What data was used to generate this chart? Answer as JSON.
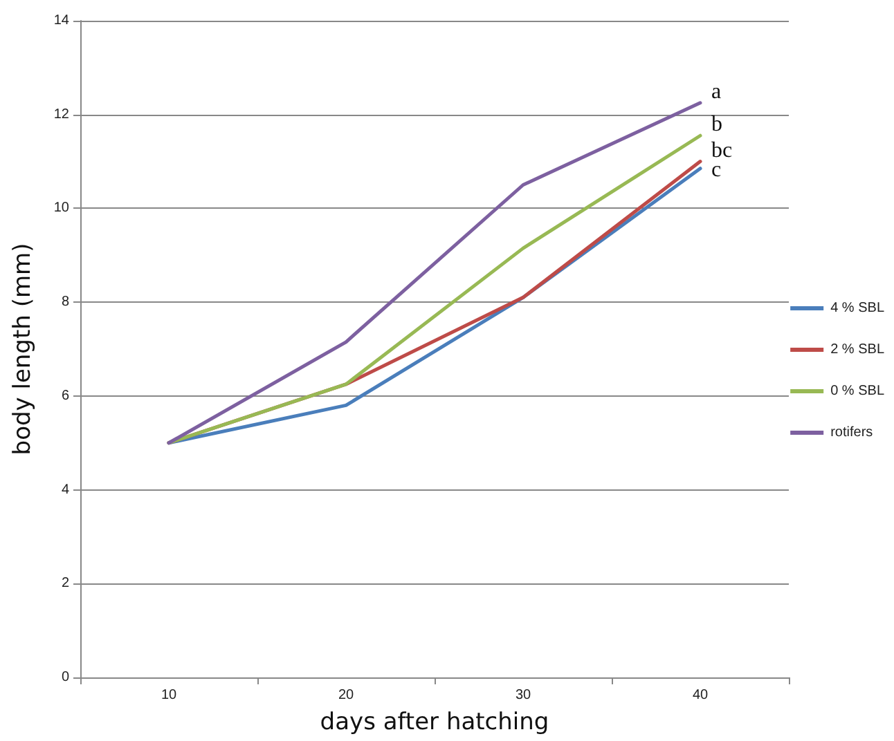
{
  "chart_data": {
    "type": "line",
    "xlabel": "days after hatching",
    "ylabel": "body length (mm)",
    "categories": [
      "10",
      "20",
      "30",
      "40"
    ],
    "series": [
      {
        "name": "4 % SBL",
        "color": "#4a7ebb",
        "values": [
          5,
          5.8,
          8.1,
          10.85
        ]
      },
      {
        "name": "2 % SBL",
        "color": "#be4b48",
        "values": [
          5,
          6.25,
          8.1,
          11.0
        ]
      },
      {
        "name": "0 % SBL",
        "color": "#98b954",
        "values": [
          5,
          6.25,
          9.15,
          11.55
        ]
      },
      {
        "name": "rotifers",
        "color": "#7d60a0",
        "values": [
          5,
          7.15,
          10.5,
          12.25
        ]
      }
    ],
    "ylim": [
      0,
      14
    ],
    "yticks": [
      0,
      2,
      4,
      6,
      8,
      10,
      12,
      14
    ],
    "grid": "y",
    "legend": "right",
    "marker": "none",
    "line_style": "solid",
    "annotations": [
      "a",
      "b",
      "bc",
      "c"
    ]
  }
}
